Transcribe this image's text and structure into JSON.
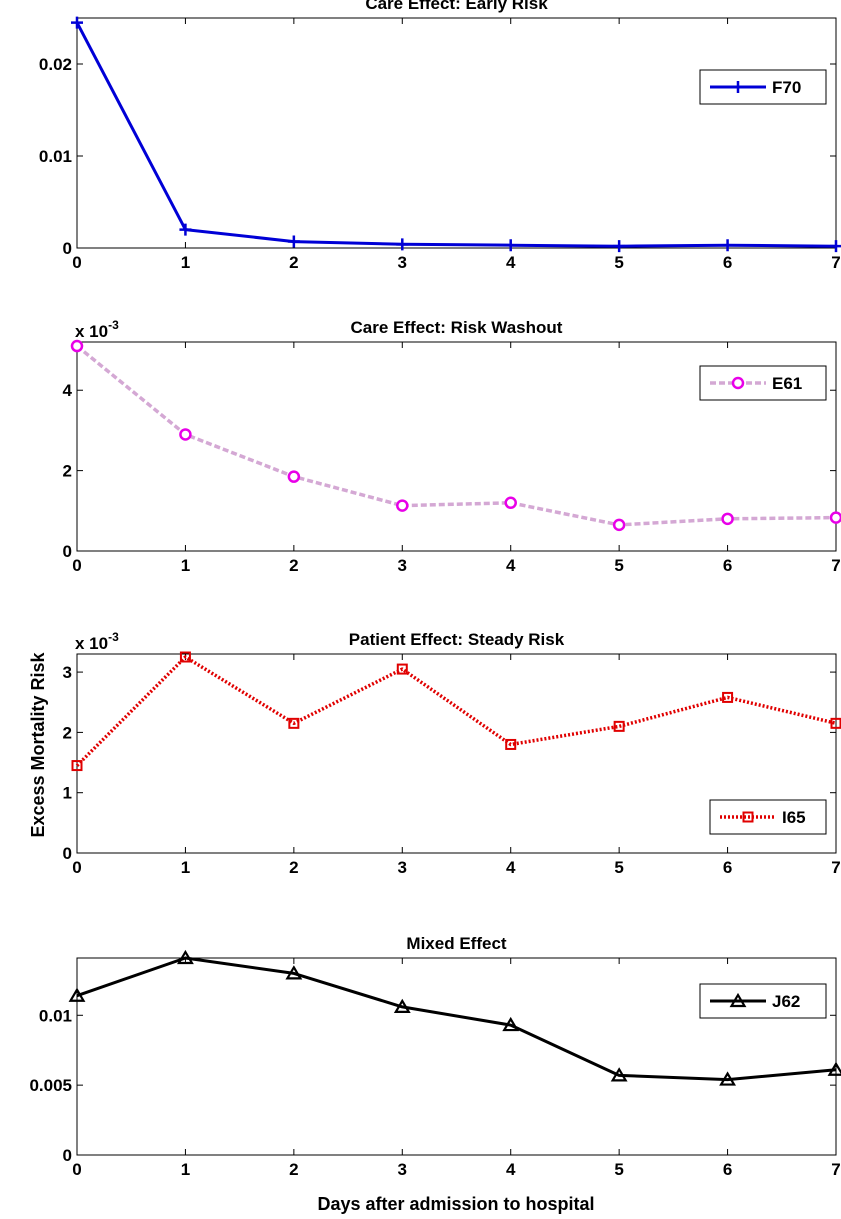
{
  "ylabel": "Excess Mortality Risk",
  "xlabel": "Days after admission to hospital",
  "chart_data": [
    {
      "type": "line",
      "title": "Care Effect: Early Risk",
      "x": [
        0,
        1,
        2,
        3,
        4,
        5,
        6,
        7
      ],
      "xlim": [
        0,
        7
      ],
      "ylim": [
        0,
        0.025
      ],
      "yticks": [
        0,
        0.01,
        0.02
      ],
      "ytick_labels": [
        "0",
        "0.01",
        "0.02"
      ],
      "exponent_base": "",
      "exponent_power": "",
      "legend_position": "top-right",
      "series": [
        {
          "name": "F70",
          "values": [
            0.0245,
            0.002,
            0.0007,
            0.0004,
            0.0003,
            0.0002,
            0.0003,
            0.0002
          ],
          "color": "#0000d6",
          "marker": "plus",
          "line_style": "solid"
        }
      ]
    },
    {
      "type": "line",
      "title": "Care Effect: Risk Washout",
      "x": [
        0,
        1,
        2,
        3,
        4,
        5,
        6,
        7
      ],
      "xlim": [
        0,
        7
      ],
      "ylim": [
        0,
        5.2
      ],
      "yticks": [
        0,
        2,
        4
      ],
      "ytick_labels": [
        "0",
        "2",
        "4"
      ],
      "exponent_base": "x 10",
      "exponent_power": "-3",
      "legend_position": "top-right",
      "series": [
        {
          "name": "E61",
          "values": [
            5.1,
            2.9,
            1.85,
            1.13,
            1.2,
            0.65,
            0.8,
            0.83
          ],
          "color": "#e800e8",
          "line_color": "#d4a8d4",
          "marker": "circle",
          "line_style": "dashed"
        }
      ]
    },
    {
      "type": "line",
      "title": "Patient Effect: Steady Risk",
      "x": [
        0,
        1,
        2,
        3,
        4,
        5,
        6,
        7
      ],
      "xlim": [
        0,
        7
      ],
      "ylim": [
        0,
        3.3
      ],
      "yticks": [
        0,
        1,
        2,
        3
      ],
      "ytick_labels": [
        "0",
        "1",
        "2",
        "3"
      ],
      "exponent_base": "x 10",
      "exponent_power": "-3",
      "legend_position": "bottom-right",
      "series": [
        {
          "name": "I65",
          "values": [
            1.45,
            3.25,
            2.15,
            3.05,
            1.8,
            2.1,
            2.58,
            2.15
          ],
          "color": "#e00000",
          "marker": "square",
          "line_style": "dotted"
        }
      ]
    },
    {
      "type": "line",
      "title": "Mixed Effect",
      "x": [
        0,
        1,
        2,
        3,
        4,
        5,
        6,
        7
      ],
      "xlim": [
        0,
        7
      ],
      "ylim": [
        0,
        0.0141
      ],
      "yticks": [
        0,
        0.005,
        0.01
      ],
      "ytick_labels": [
        "0",
        "0.005",
        "0.01"
      ],
      "exponent_base": "",
      "exponent_power": "",
      "legend_position": "top-right",
      "series": [
        {
          "name": "J62",
          "values": [
            0.0114,
            0.0141,
            0.013,
            0.0106,
            0.0093,
            0.0057,
            0.0054,
            0.0061
          ],
          "color": "#000000",
          "marker": "triangle",
          "line_style": "solid"
        }
      ]
    }
  ]
}
